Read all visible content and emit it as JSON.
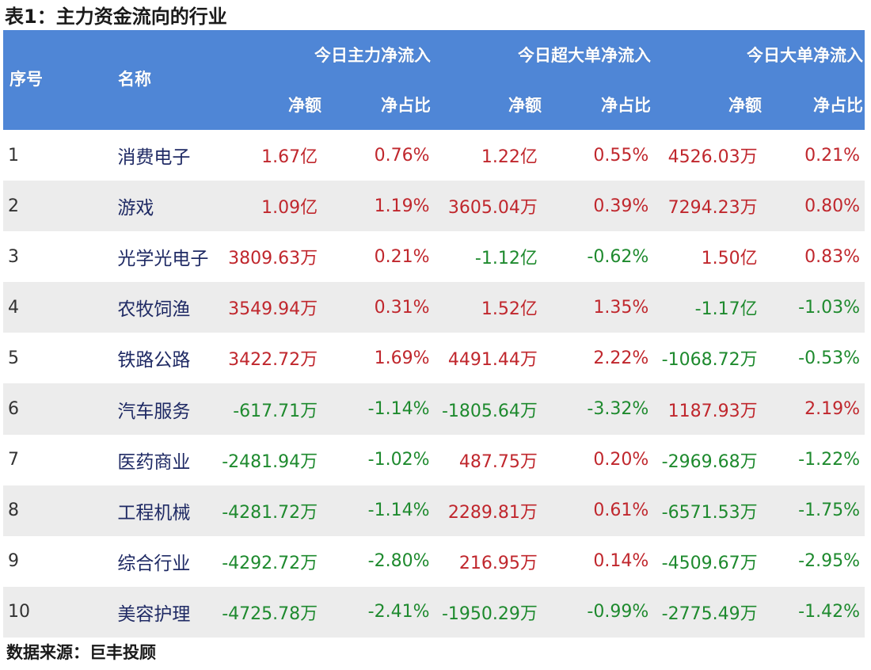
{
  "title": "表1：主力资金流向的行业",
  "header": {
    "rank": "序号",
    "name": "名称",
    "group_main": "今日主力净流入",
    "group_super": "今日超大单净流入",
    "group_large": "今日大单净流入",
    "sub_amount": "净额",
    "sub_ratio": "净占比"
  },
  "colors": {
    "header_bg": "#4f86d6",
    "positive": "#c0272d",
    "negative": "#1e8a2e",
    "alt_row": "#ececec"
  },
  "rows": [
    {
      "rank": "1",
      "name": "消费电子",
      "main_amount": "1.67亿",
      "main_ratio": "0.76%",
      "super_amount": "1.22亿",
      "super_ratio": "0.55%",
      "large_amount": "4526.03万",
      "large_ratio": "0.21%"
    },
    {
      "rank": "2",
      "name": "游戏",
      "main_amount": "1.09亿",
      "main_ratio": "1.19%",
      "super_amount": "3605.04万",
      "super_ratio": "0.39%",
      "large_amount": "7294.23万",
      "large_ratio": "0.80%"
    },
    {
      "rank": "3",
      "name": "光学光电子",
      "main_amount": "3809.63万",
      "main_ratio": "0.21%",
      "super_amount": "-1.12亿",
      "super_ratio": "-0.62%",
      "large_amount": "1.50亿",
      "large_ratio": "0.83%"
    },
    {
      "rank": "4",
      "name": "农牧饲渔",
      "main_amount": "3549.94万",
      "main_ratio": "0.31%",
      "super_amount": "1.52亿",
      "super_ratio": "1.35%",
      "large_amount": "-1.17亿",
      "large_ratio": "-1.03%"
    },
    {
      "rank": "5",
      "name": "铁路公路",
      "main_amount": "3422.72万",
      "main_ratio": "1.69%",
      "super_amount": "4491.44万",
      "super_ratio": "2.22%",
      "large_amount": "-1068.72万",
      "large_ratio": "-0.53%"
    },
    {
      "rank": "6",
      "name": "汽车服务",
      "main_amount": "-617.71万",
      "main_ratio": "-1.14%",
      "super_amount": "-1805.64万",
      "super_ratio": "-3.32%",
      "large_amount": "1187.93万",
      "large_ratio": "2.19%"
    },
    {
      "rank": "7",
      "name": "医药商业",
      "main_amount": "-2481.94万",
      "main_ratio": "-1.02%",
      "super_amount": "487.75万",
      "super_ratio": "0.20%",
      "large_amount": "-2969.68万",
      "large_ratio": "-1.22%"
    },
    {
      "rank": "8",
      "name": "工程机械",
      "main_amount": "-4281.72万",
      "main_ratio": "-1.14%",
      "super_amount": "2289.81万",
      "super_ratio": "0.61%",
      "large_amount": "-6571.53万",
      "large_ratio": "-1.75%"
    },
    {
      "rank": "9",
      "name": "综合行业",
      "main_amount": "-4292.72万",
      "main_ratio": "-2.80%",
      "super_amount": "216.95万",
      "super_ratio": "0.14%",
      "large_amount": "-4509.67万",
      "large_ratio": "-2.95%"
    },
    {
      "rank": "10",
      "name": "美容护理",
      "main_amount": "-4725.78万",
      "main_ratio": "-2.41%",
      "super_amount": "-1950.29万",
      "super_ratio": "-0.99%",
      "large_amount": "-2775.49万",
      "large_ratio": "-1.42%"
    }
  ],
  "source": "数据来源：巨丰投顾"
}
